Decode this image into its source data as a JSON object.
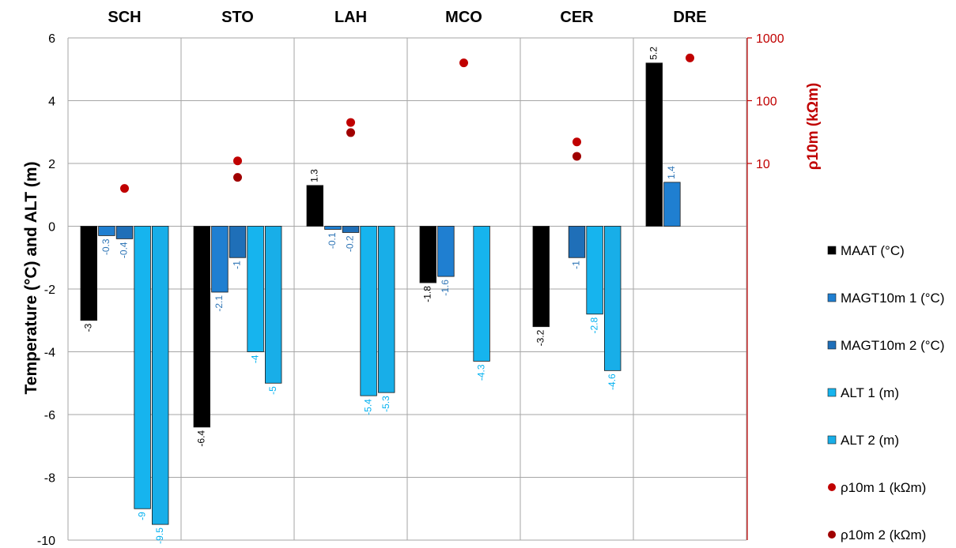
{
  "chart_data": {
    "type": "bar",
    "categories": [
      "SCH",
      "STO",
      "LAH",
      "MCO",
      "CER",
      "DRE"
    ],
    "ylabel": "Temperature (°C) and ALT (m)",
    "ylim": [
      -10,
      6
    ],
    "yticks": [
      "-10",
      "-8",
      "-6",
      "-4",
      "-2",
      "0",
      "2",
      "4",
      "6"
    ],
    "y2label": "ρ10m (kΩm)",
    "y2scale": "log",
    "y2lim": [
      1,
      1000
    ],
    "y2ticks": [
      "10",
      "100",
      "1000"
    ],
    "grid": true,
    "legend_position": "right",
    "series": [
      {
        "name": "MAAT (°C)",
        "color": "#000000",
        "label_color": "#000000",
        "values": [
          -3,
          -6.4,
          1.3,
          -1.8,
          -3.2,
          5.2
        ],
        "labels": [
          "-3",
          "-6.4",
          "1.3",
          "-1.8",
          "-3.2",
          "5.2"
        ]
      },
      {
        "name": "MAGT10m 1 (°C)",
        "color": "#1f7fd1",
        "label_color": "#2e75b6",
        "values": [
          -0.3,
          -2.1,
          -0.1,
          -1.6,
          null,
          1.4
        ],
        "labels": [
          "-0.3",
          "-2.1",
          "-0.1",
          "-1.6",
          "",
          "1.4"
        ]
      },
      {
        "name": "MAGT10m 2 (°C)",
        "color": "#1f6fb8",
        "label_color": "#2e75b6",
        "values": [
          -0.4,
          -1,
          -0.2,
          null,
          -1,
          null
        ],
        "labels": [
          "-0.4",
          "-1",
          "-0.2",
          "",
          "-1",
          ""
        ]
      },
      {
        "name": "ALT 1 (m)",
        "color": "#16b4ee",
        "label_color": "#00b0f0",
        "values": [
          -9,
          -4,
          -5.4,
          -4.3,
          -2.8,
          null
        ],
        "labels": [
          "-9",
          "-4",
          "-5.4",
          "-4.3",
          "-2.8",
          ""
        ]
      },
      {
        "name": "ALT 2 (m)",
        "color": "#18aee8",
        "label_color": "#00b0f0",
        "values": [
          -9.5,
          -5,
          -5.3,
          null,
          -4.6,
          null
        ],
        "labels": [
          "-9.5",
          "-5",
          "-5.3",
          "",
          "-4.6",
          ""
        ]
      }
    ],
    "scatter_series": [
      {
        "name": "ρ10m 1 (kΩm)",
        "color": "#c00000",
        "values": [
          4,
          11,
          45,
          400,
          22,
          480
        ]
      },
      {
        "name": "ρ10m 2 (kΩm)",
        "color": "#a00000",
        "values": [
          null,
          6,
          31,
          null,
          13,
          null
        ]
      }
    ]
  }
}
